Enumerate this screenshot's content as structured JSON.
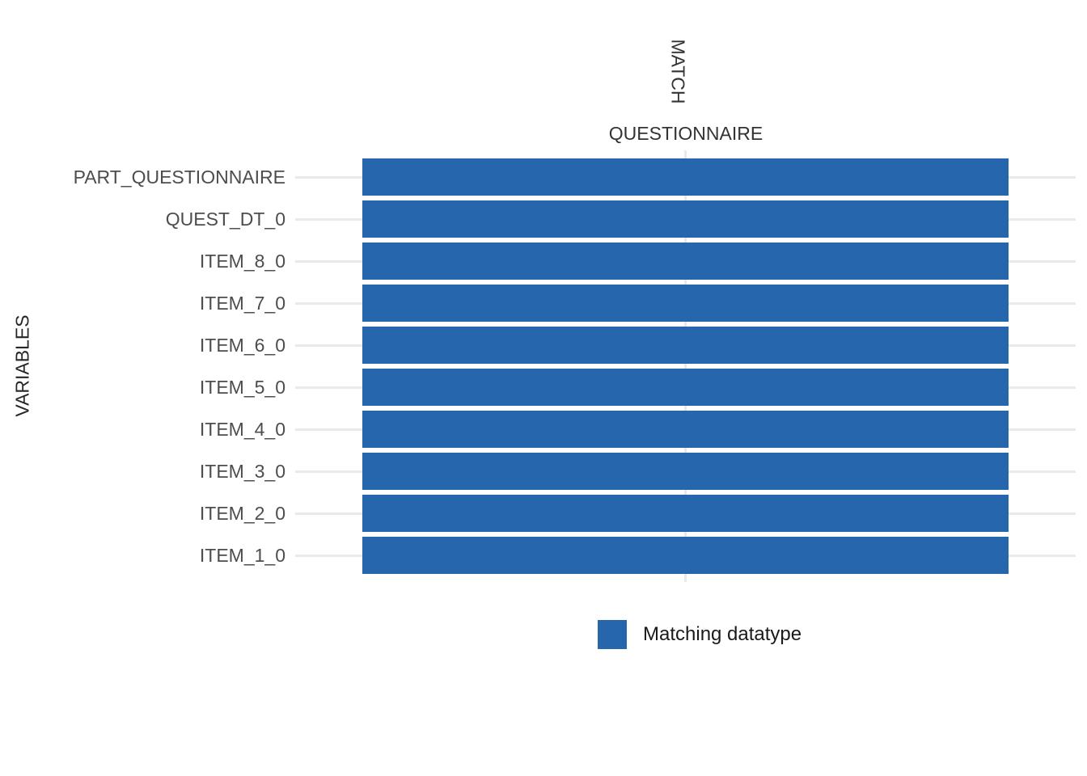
{
  "chart_data": {
    "type": "heatmap",
    "x_axis_title": "MATCH",
    "x_categories": [
      "QUESTIONNAIRE"
    ],
    "y_axis_title": "VARIABLES",
    "y_categories": [
      "PART_QUESTIONNAIRE",
      "QUEST_DT_0",
      "ITEM_8_0",
      "ITEM_7_0",
      "ITEM_6_0",
      "ITEM_5_0",
      "ITEM_4_0",
      "ITEM_3_0",
      "ITEM_2_0",
      "ITEM_1_0"
    ],
    "cells": [
      {
        "y": "PART_QUESTIONNAIRE",
        "x": "QUESTIONNAIRE",
        "value": "Matching datatype"
      },
      {
        "y": "QUEST_DT_0",
        "x": "QUESTIONNAIRE",
        "value": "Matching datatype"
      },
      {
        "y": "ITEM_8_0",
        "x": "QUESTIONNAIRE",
        "value": "Matching datatype"
      },
      {
        "y": "ITEM_7_0",
        "x": "QUESTIONNAIRE",
        "value": "Matching datatype"
      },
      {
        "y": "ITEM_6_0",
        "x": "QUESTIONNAIRE",
        "value": "Matching datatype"
      },
      {
        "y": "ITEM_5_0",
        "x": "QUESTIONNAIRE",
        "value": "Matching datatype"
      },
      {
        "y": "ITEM_4_0",
        "x": "QUESTIONNAIRE",
        "value": "Matching datatype"
      },
      {
        "y": "ITEM_3_0",
        "x": "QUESTIONNAIRE",
        "value": "Matching datatype"
      },
      {
        "y": "ITEM_2_0",
        "x": "QUESTIONNAIRE",
        "value": "Matching datatype"
      },
      {
        "y": "ITEM_1_0",
        "x": "QUESTIONNAIRE",
        "value": "Matching datatype"
      }
    ],
    "legend": {
      "position": "bottom",
      "items": [
        {
          "label": "Matching datatype",
          "color": "#2566AC"
        }
      ]
    },
    "grid": true,
    "colors": {
      "match": "#2566AC",
      "gridline": "#E9E9E9",
      "axis_text": "#4D4D4D",
      "title_text": "#333333",
      "background": "#FFFFFF"
    }
  }
}
